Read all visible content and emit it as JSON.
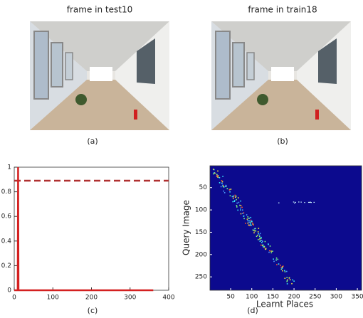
{
  "images": [
    {
      "title": "frame in test10",
      "caption": "(a)"
    },
    {
      "title": "frame in train18",
      "caption": "(b)"
    }
  ],
  "chart_data": [
    {
      "type": "line",
      "caption": "(c)",
      "x": [
        0,
        9,
        10,
        11,
        360
      ],
      "values": [
        0,
        0,
        1,
        0,
        0
      ],
      "color": "#d42020",
      "threshold": 0.89,
      "threshold_color": "#b03030",
      "xlim": [
        0,
        400
      ],
      "xticks": [
        0,
        100,
        200,
        300,
        400
      ],
      "ylim": [
        0,
        1
      ],
      "yticks": [
        0,
        0.2,
        0.4,
        0.6,
        0.8,
        1
      ]
    },
    {
      "type": "heatmap",
      "caption": "(d)",
      "x_label": "Learnt Places",
      "y_label": "Query Image",
      "y_inverted": true,
      "background": "#0c0a8e",
      "xlim": [
        1,
        360
      ],
      "xticks": [
        50,
        100,
        150,
        200,
        250,
        300,
        350
      ],
      "ylim": [
        1,
        280
      ],
      "yticks": [
        50,
        100,
        150,
        200,
        250
      ]
    }
  ]
}
